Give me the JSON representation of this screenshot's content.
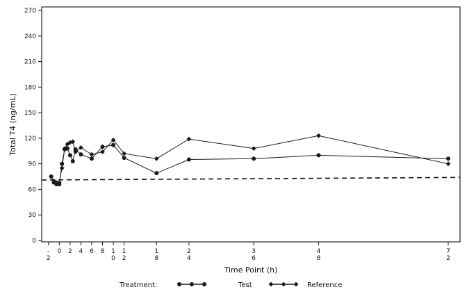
{
  "chart_data": {
    "type": "line",
    "xlabel": "Time Point (h)",
    "ylabel": "Total T4 (ng/mL)",
    "ylim": [
      0,
      270
    ],
    "yticks": [
      0,
      30,
      60,
      90,
      120,
      150,
      180,
      210,
      240,
      270
    ],
    "xlim": [
      -3,
      73
    ],
    "xticks": [
      {
        "value": -2,
        "label": "-\n2"
      },
      {
        "value": 0,
        "label": "0"
      },
      {
        "value": 2,
        "label": "2"
      },
      {
        "value": 4,
        "label": "4"
      },
      {
        "value": 6,
        "label": "6"
      },
      {
        "value": 8,
        "label": "8"
      },
      {
        "value": 10,
        "label": "1\n0"
      },
      {
        "value": 12,
        "label": "1\n2"
      },
      {
        "value": 18,
        "label": "1\n8"
      },
      {
        "value": 24,
        "label": "2\n4"
      },
      {
        "value": 36,
        "label": "3\n6"
      },
      {
        "value": 48,
        "label": "4\n8"
      },
      {
        "value": 72,
        "label": "7\n2"
      }
    ],
    "reference_line": {
      "y_start": 71,
      "y_end": 74,
      "style": "dashed"
    },
    "grid": false,
    "legend": {
      "title": "Treatment:",
      "placement": "bottom"
    },
    "series": [
      {
        "name": "Test",
        "marker": "circle",
        "x": [
          -1.5,
          -1,
          -0.5,
          0,
          0.5,
          1,
          1.5,
          2,
          2.5,
          3,
          4,
          6,
          8,
          10,
          12,
          18,
          24,
          36,
          48,
          72
        ],
        "y": [
          75,
          68,
          66,
          66,
          90,
          107,
          108,
          100,
          93,
          107,
          101,
          96,
          110,
          112,
          97,
          79,
          95,
          96,
          100,
          96
        ]
      },
      {
        "name": "Reference",
        "marker": "diamond",
        "x": [
          -1,
          -0.5,
          0,
          0.5,
          1,
          1.5,
          2,
          2.5,
          3,
          4,
          6,
          8,
          10,
          12,
          18,
          24,
          36,
          48,
          72
        ],
        "y": [
          70,
          68,
          68,
          85,
          108,
          113,
          115,
          116,
          104,
          109,
          101,
          104,
          118,
          102,
          96,
          119,
          108,
          123,
          90
        ]
      }
    ]
  },
  "colors": {
    "line": "#1a1a1a",
    "axis": "#111111"
  }
}
